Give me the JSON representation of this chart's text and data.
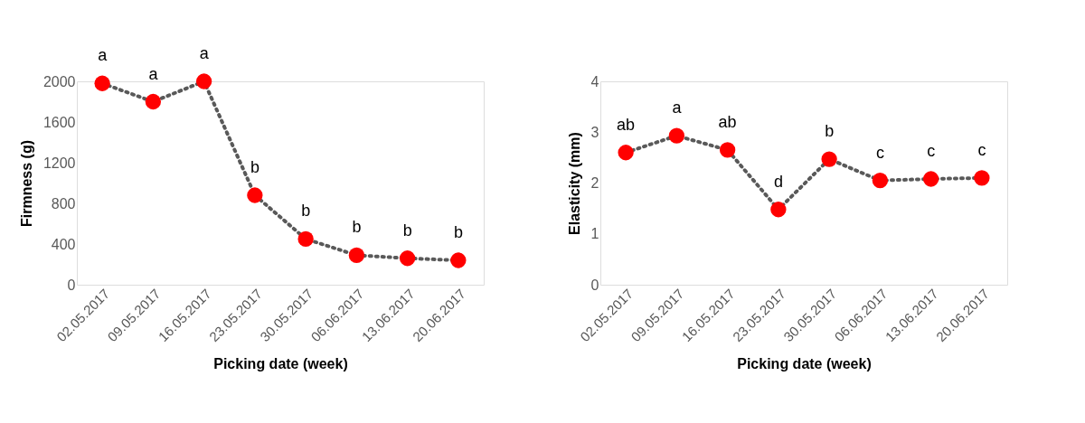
{
  "chart_data": [
    {
      "type": "line",
      "xlabel": "Picking date  (week)",
      "ylabel": "Firmness (g)",
      "categories": [
        "02.05.2017",
        "09.05.2017",
        "16.05.2017",
        "23.05.2017",
        "30.05.2017",
        "06.06.2017",
        "13.06.2017",
        "20.06.2017"
      ],
      "series": [
        {
          "color": "#ff0000",
          "values": [
            1980,
            1800,
            2000,
            880,
            450,
            290,
            260,
            240
          ]
        }
      ],
      "ylim": [
        0,
        2000
      ],
      "yticks": [
        0,
        400,
        800,
        1200,
        1600,
        2000
      ],
      "grid": false,
      "marker": "circle",
      "line_style": "dotted",
      "annotations": [
        {
          "text": "a",
          "x": "02.05.2017",
          "y": 1980
        },
        {
          "text": "a",
          "x": "09.05.2017",
          "y": 1800
        },
        {
          "text": "a",
          "x": "16.05.2017",
          "y": 2000
        },
        {
          "text": "b",
          "x": "23.05.2017",
          "y": 880
        },
        {
          "text": "b",
          "x": "30.05.2017",
          "y": 450
        },
        {
          "text": "b",
          "x": "06.06.2017",
          "y": 290
        },
        {
          "text": "b",
          "x": "13.06.2017",
          "y": 260
        },
        {
          "text": "b",
          "x": "20.06.2017",
          "y": 240
        }
      ]
    },
    {
      "type": "line",
      "xlabel": "Picking date  (week)",
      "ylabel": "Elasticity (mm)",
      "categories": [
        "02.05.2017",
        "09.05.2017",
        "16.05.2017",
        "23.05.2017",
        "30.05.2017",
        "06.06.2017",
        "13.06.2017",
        "20.06.2017"
      ],
      "series": [
        {
          "color": "#ff0000",
          "values": [
            2.6,
            2.93,
            2.65,
            1.48,
            2.47,
            2.05,
            2.08,
            2.1
          ]
        }
      ],
      "ylim": [
        0,
        4
      ],
      "yticks": [
        0,
        1,
        2,
        3,
        4
      ],
      "grid": false,
      "marker": "circle",
      "line_style": "dotted",
      "annotations": [
        {
          "text": "ab",
          "x": "02.05.2017",
          "y": 2.6
        },
        {
          "text": "a",
          "x": "09.05.2017",
          "y": 2.93
        },
        {
          "text": "ab",
          "x": "16.05.2017",
          "y": 2.65
        },
        {
          "text": "d",
          "x": "23.05.2017",
          "y": 1.48
        },
        {
          "text": "b",
          "x": "30.05.2017",
          "y": 2.47
        },
        {
          "text": "c",
          "x": "06.06.2017",
          "y": 2.05
        },
        {
          "text": "c",
          "x": "13.06.2017",
          "y": 2.08
        },
        {
          "text": "c",
          "x": "20.06.2017",
          "y": 2.1
        }
      ]
    }
  ]
}
